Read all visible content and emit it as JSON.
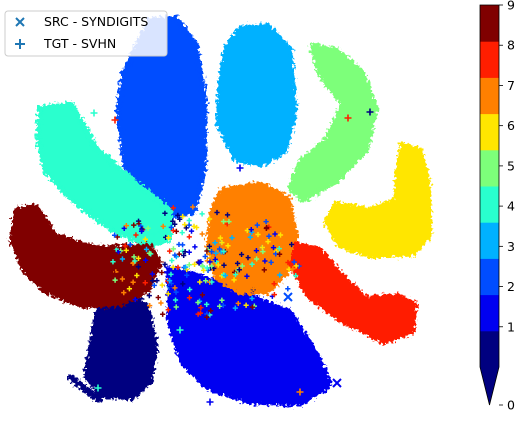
{
  "chart_data": {
    "type": "scatter",
    "title": "",
    "xlabel": "",
    "ylabel": "",
    "axes_visible": false,
    "grid": false,
    "legend": {
      "placement": "top-left",
      "entries": [
        {
          "label": "SRC - SYNDIGITS",
          "marker": "x",
          "color": "#1f77b4"
        },
        {
          "label": "TGT - SVHN",
          "marker": "+",
          "color": "#1f77b4"
        }
      ]
    },
    "colorbar": {
      "placement": "right",
      "ticks": [
        "0",
        "1",
        "2",
        "3",
        "4",
        "5",
        "6",
        "7",
        "8",
        "9"
      ],
      "range": [
        0,
        9
      ],
      "extend": "min",
      "colors": [
        "#000080",
        "#0000f1",
        "#004dff",
        "#00b1ff",
        "#29ffce",
        "#7dff7a",
        "#ffe600",
        "#ff8000",
        "#ff1e00",
        "#800000"
      ]
    },
    "series": [
      {
        "class": 0,
        "color": "#000080",
        "clusters": [
          {
            "path": [
              [
                100,
                300
              ],
              [
                128,
                290
              ],
              [
                148,
                308
              ],
              [
                156,
                348
              ],
              [
                150,
                382
              ],
              [
                132,
                398
              ],
              [
                102,
                396
              ],
              [
                86,
                376
              ],
              [
                92,
                340
              ]
            ],
            "trail": [
              [
                70,
                377
              ],
              [
                100,
                400
              ]
            ]
          }
        ]
      },
      {
        "class": 1,
        "color": "#0000f1",
        "clusters": [
          {
            "path": [
              [
                168,
                268
              ],
              [
                200,
                276
              ],
              [
                240,
                292
              ],
              [
                290,
                312
              ],
              [
                318,
                356
              ],
              [
                330,
                385
              ],
              [
                300,
                404
              ],
              [
                250,
                402
              ],
              [
                208,
                388
              ],
              [
                182,
                362
              ],
              [
                170,
                326
              ]
            ],
            "trail": []
          }
        ]
      },
      {
        "class": 2,
        "color": "#004dff",
        "clusters": [
          {
            "path": [
              [
                150,
                20
              ],
              [
                176,
                18
              ],
              [
                196,
                45
              ],
              [
                205,
                100
              ],
              [
                204,
                170
              ],
              [
                194,
                212
              ],
              [
                170,
                216
              ],
              [
                148,
                200
              ],
              [
                125,
                165
              ],
              [
                118,
                110
              ],
              [
                124,
                72
              ]
            ],
            "trail": []
          }
        ]
      },
      {
        "class": 3,
        "color": "#00b1ff",
        "clusters": [
          {
            "path": [
              [
                240,
                28
              ],
              [
                268,
                26
              ],
              [
                290,
                50
              ],
              [
                295,
                110
              ],
              [
                285,
                152
              ],
              [
                262,
                164
              ],
              [
                236,
                160
              ],
              [
                218,
                124
              ],
              [
                220,
                84
              ],
              [
                226,
                48
              ]
            ],
            "trail": []
          }
        ]
      },
      {
        "class": 4,
        "color": "#29ffce",
        "clusters": [
          {
            "path": [
              [
                40,
                108
              ],
              [
                72,
                104
              ],
              [
                96,
                148
              ],
              [
                130,
                178
              ],
              [
                170,
                210
              ],
              [
                170,
                240
              ],
              [
                148,
                246
              ],
              [
                112,
                230
              ],
              [
                74,
                202
              ],
              [
                46,
                172
              ],
              [
                38,
                140
              ]
            ],
            "trail": []
          }
        ]
      },
      {
        "class": 5,
        "color": "#7dff7a",
        "clusters": [
          {
            "path": [
              [
                312,
                46
              ],
              [
                336,
                50
              ],
              [
                362,
                72
              ],
              [
                376,
                108
              ],
              [
                366,
                150
              ],
              [
                338,
                180
              ],
              [
                304,
                200
              ],
              [
                290,
                188
              ],
              [
                300,
                162
              ],
              [
                328,
                138
              ],
              [
                342,
                104
              ],
              [
                320,
                74
              ]
            ],
            "trail": []
          }
        ]
      },
      {
        "class": 6,
        "color": "#ffe600",
        "clusters": [
          {
            "path": [
              [
                402,
                144
              ],
              [
                420,
                150
              ],
              [
                428,
                180
              ],
              [
                430,
                236
              ],
              [
                412,
                254
              ],
              [
                372,
                256
              ],
              [
                340,
                246
              ],
              [
                326,
                222
              ],
              [
                336,
                204
              ],
              [
                370,
                210
              ],
              [
                396,
                200
              ],
              [
                398,
                170
              ]
            ],
            "trail": []
          }
        ]
      },
      {
        "class": 7,
        "color": "#ff8000",
        "clusters": [
          {
            "path": [
              [
                222,
                190
              ],
              [
                260,
                184
              ],
              [
                288,
                198
              ],
              [
                296,
                236
              ],
              [
                288,
                272
              ],
              [
                268,
                292
              ],
              [
                240,
                292
              ],
              [
                216,
                278
              ],
              [
                208,
                244
              ],
              [
                212,
                212
              ]
            ],
            "trail": []
          }
        ]
      },
      {
        "class": 8,
        "color": "#ff1e00",
        "clusters": [
          {
            "path": [
              [
                296,
                244
              ],
              [
                320,
                250
              ],
              [
                346,
                280
              ],
              [
                366,
                298
              ],
              [
                398,
                296
              ],
              [
                415,
                304
              ],
              [
                412,
                332
              ],
              [
                384,
                342
              ],
              [
                340,
                320
              ],
              [
                308,
                296
              ],
              [
                292,
                266
              ]
            ],
            "trail": []
          }
        ]
      },
      {
        "class": 9,
        "color": "#800000",
        "clusters": [
          {
            "path": [
              [
                16,
                210
              ],
              [
                36,
                206
              ],
              [
                56,
                236
              ],
              [
                96,
                248
              ],
              [
                150,
                246
              ],
              [
                160,
                262
              ],
              [
                148,
                290
              ],
              [
                122,
                304
              ],
              [
                82,
                306
              ],
              [
                46,
                292
              ],
              [
                24,
                270
              ],
              [
                12,
                240
              ]
            ],
            "trail": []
          }
        ]
      }
    ]
  }
}
